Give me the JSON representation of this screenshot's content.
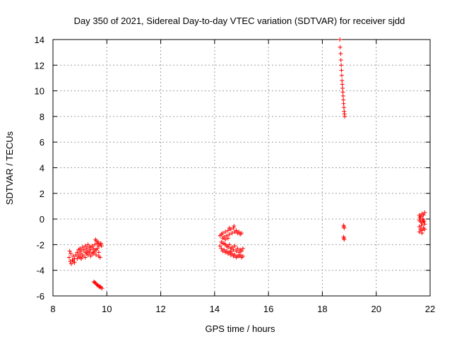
{
  "chart_data": {
    "type": "scatter",
    "title": "Day 350 of 2021, Sidereal Day-to-day VTEC variation (SDTVAR) for receiver sjdd",
    "xlabel": "GPS time / hours",
    "ylabel": "SDTVAR / TECUs",
    "xlim": [
      8,
      22
    ],
    "ylim": [
      -6,
      14
    ],
    "xticks": [
      8,
      10,
      12,
      14,
      16,
      18,
      20,
      22
    ],
    "yticks": [
      -6,
      -4,
      -2,
      0,
      2,
      4,
      6,
      8,
      10,
      12,
      14
    ],
    "grid": true,
    "marker": "plus",
    "color": "#ff0000",
    "series": [
      {
        "name": "SDTVAR",
        "points": [
          [
            8.62,
            -2.5
          ],
          [
            8.66,
            -2.7
          ],
          [
            8.6,
            -3.0
          ],
          [
            8.64,
            -3.3
          ],
          [
            8.68,
            -3.5
          ],
          [
            8.72,
            -3.2
          ],
          [
            8.75,
            -2.9
          ],
          [
            8.8,
            -3.1
          ],
          [
            8.85,
            -2.8
          ],
          [
            8.9,
            -2.6
          ],
          [
            8.95,
            -2.9
          ],
          [
            9.0,
            -2.7
          ],
          [
            9.05,
            -2.5
          ],
          [
            9.1,
            -2.8
          ],
          [
            9.15,
            -2.4
          ],
          [
            9.2,
            -2.6
          ],
          [
            9.25,
            -2.3
          ],
          [
            9.3,
            -2.5
          ],
          [
            9.35,
            -2.2
          ],
          [
            9.4,
            -2.4
          ],
          [
            9.45,
            -2.1
          ],
          [
            9.5,
            -2.3
          ],
          [
            9.55,
            -2.0
          ],
          [
            9.6,
            -1.7
          ],
          [
            9.65,
            -1.9
          ],
          [
            9.7,
            -2.1
          ],
          [
            9.75,
            -2.0
          ],
          [
            9.8,
            -2.1
          ],
          [
            8.75,
            -3.3
          ],
          [
            8.8,
            -3.4
          ],
          [
            8.9,
            -3.1
          ],
          [
            9.0,
            -3.0
          ],
          [
            9.05,
            -3.1
          ],
          [
            9.1,
            -2.9
          ],
          [
            9.2,
            -3.0
          ],
          [
            9.3,
            -2.8
          ],
          [
            9.4,
            -2.9
          ],
          [
            9.5,
            -2.7
          ],
          [
            9.6,
            -2.8
          ],
          [
            9.7,
            -2.9
          ],
          [
            9.75,
            -3.0
          ],
          [
            8.95,
            -2.4
          ],
          [
            9.0,
            -2.3
          ],
          [
            9.1,
            -2.2
          ],
          [
            9.2,
            -2.1
          ],
          [
            9.3,
            -2.0
          ],
          [
            9.4,
            -2.2
          ],
          [
            9.5,
            -2.6
          ],
          [
            9.6,
            -2.4
          ],
          [
            9.7,
            -2.6
          ],
          [
            9.25,
            -2.7
          ],
          [
            9.35,
            -2.6
          ],
          [
            9.45,
            -2.7
          ],
          [
            9.55,
            -2.5
          ],
          [
            9.65,
            -2.3
          ],
          [
            9.78,
            -1.9
          ],
          [
            9.68,
            -1.8
          ],
          [
            9.58,
            -1.6
          ],
          [
            9.52,
            -4.9
          ],
          [
            9.58,
            -5.0
          ],
          [
            9.62,
            -5.1
          ],
          [
            9.68,
            -5.2
          ],
          [
            9.72,
            -5.3
          ],
          [
            9.78,
            -5.35
          ],
          [
            9.82,
            -5.4
          ],
          [
            9.55,
            -4.95
          ],
          [
            9.65,
            -5.15
          ],
          [
            9.75,
            -5.25
          ],
          [
            14.2,
            -1.3
          ],
          [
            14.25,
            -1.2
          ],
          [
            14.3,
            -1.1
          ],
          [
            14.35,
            -1.4
          ],
          [
            14.4,
            -1.0
          ],
          [
            14.45,
            -1.3
          ],
          [
            14.5,
            -0.9
          ],
          [
            14.55,
            -1.2
          ],
          [
            14.6,
            -0.8
          ],
          [
            14.65,
            -1.1
          ],
          [
            14.7,
            -0.7
          ],
          [
            14.75,
            -1.0
          ],
          [
            14.8,
            -0.9
          ],
          [
            14.85,
            -1.1
          ],
          [
            14.9,
            -1.0
          ],
          [
            14.95,
            -1.2
          ],
          [
            15.0,
            -1.1
          ],
          [
            14.72,
            -0.55
          ],
          [
            14.3,
            -1.5
          ],
          [
            14.4,
            -1.6
          ],
          [
            14.5,
            -1.5
          ],
          [
            14.55,
            -0.7
          ],
          [
            14.2,
            -2.1
          ],
          [
            14.25,
            -2.3
          ],
          [
            14.3,
            -1.9
          ],
          [
            14.35,
            -2.4
          ],
          [
            14.4,
            -2.0
          ],
          [
            14.45,
            -2.5
          ],
          [
            14.5,
            -2.2
          ],
          [
            14.55,
            -2.6
          ],
          [
            14.6,
            -2.3
          ],
          [
            14.65,
            -2.7
          ],
          [
            14.7,
            -2.4
          ],
          [
            14.75,
            -2.8
          ],
          [
            14.8,
            -2.5
          ],
          [
            14.85,
            -2.9
          ],
          [
            14.9,
            -2.6
          ],
          [
            14.95,
            -2.8
          ],
          [
            15.0,
            -2.5
          ],
          [
            15.05,
            -2.9
          ],
          [
            15.05,
            -2.3
          ],
          [
            14.3,
            -2.5
          ],
          [
            14.4,
            -2.6
          ],
          [
            14.5,
            -2.7
          ],
          [
            14.6,
            -2.8
          ],
          [
            14.7,
            -2.9
          ],
          [
            14.8,
            -3.0
          ],
          [
            14.9,
            -2.9
          ],
          [
            15.0,
            -3.0
          ],
          [
            14.25,
            -1.8
          ],
          [
            14.35,
            -1.9
          ],
          [
            14.45,
            -2.1
          ],
          [
            14.55,
            -2.0
          ],
          [
            14.65,
            -2.2
          ],
          [
            14.75,
            -2.1
          ],
          [
            14.85,
            -2.3
          ],
          [
            14.95,
            -2.4
          ],
          [
            14.6,
            -2.5
          ],
          [
            18.65,
            14.0
          ],
          [
            18.66,
            13.4
          ],
          [
            18.68,
            12.9
          ],
          [
            18.69,
            12.4
          ],
          [
            18.7,
            12.0
          ],
          [
            18.71,
            11.6
          ],
          [
            18.72,
            11.2
          ],
          [
            18.73,
            10.8
          ],
          [
            18.74,
            10.5
          ],
          [
            18.75,
            10.2
          ],
          [
            18.76,
            9.9
          ],
          [
            18.77,
            9.6
          ],
          [
            18.78,
            9.3
          ],
          [
            18.79,
            9.0
          ],
          [
            18.8,
            8.7
          ],
          [
            18.81,
            8.4
          ],
          [
            18.82,
            8.2
          ],
          [
            18.83,
            8.0
          ],
          [
            18.79,
            -0.5
          ],
          [
            18.8,
            -0.6
          ],
          [
            18.81,
            -0.7
          ],
          [
            18.79,
            -1.4
          ],
          [
            18.8,
            -1.5
          ],
          [
            18.81,
            -1.6
          ],
          [
            21.6,
            0.3
          ],
          [
            21.65,
            0.2
          ],
          [
            21.7,
            0.4
          ],
          [
            21.75,
            0.3
          ],
          [
            21.8,
            0.5
          ],
          [
            21.6,
            -0.1
          ],
          [
            21.65,
            -0.2
          ],
          [
            21.7,
            -0.3
          ],
          [
            21.75,
            -0.1
          ],
          [
            21.8,
            -0.4
          ],
          [
            21.6,
            -0.6
          ],
          [
            21.65,
            -0.8
          ],
          [
            21.7,
            -0.9
          ],
          [
            21.75,
            -0.7
          ],
          [
            21.6,
            -1.0
          ],
          [
            21.7,
            -1.1
          ],
          [
            21.8,
            -0.8
          ],
          [
            21.62,
            0.1
          ],
          [
            21.68,
            -0.5
          ],
          [
            21.78,
            -0.2
          ],
          [
            21.72,
            0.0
          ]
        ]
      }
    ]
  }
}
